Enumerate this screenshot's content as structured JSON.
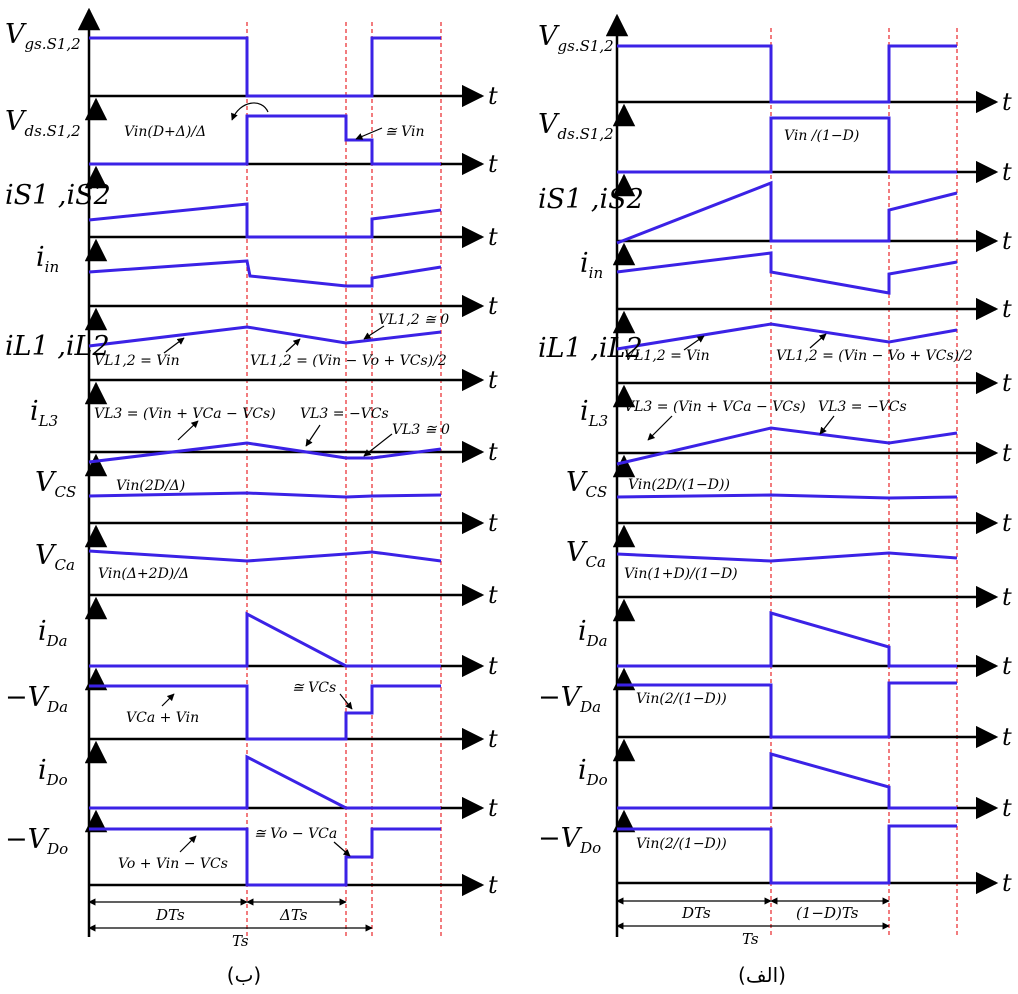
{
  "axis_tick": "t",
  "panels": {
    "b": {
      "caption": "(ب)",
      "signals": [
        {
          "id": "vgs",
          "label": "V",
          "sub": "gs.S1,2"
        },
        {
          "id": "vds",
          "label": "V",
          "sub": "ds.S1,2"
        },
        {
          "id": "is",
          "label": "iS1 ,iS2",
          "sub": ""
        },
        {
          "id": "iin",
          "label": "i",
          "sub": "in"
        },
        {
          "id": "iL",
          "label": "iL1 ,iL2",
          "sub": ""
        },
        {
          "id": "iL3",
          "label": "i",
          "sub": "L3"
        },
        {
          "id": "vcs",
          "label": "V",
          "sub": "CS"
        },
        {
          "id": "vca",
          "label": "V",
          "sub": "Ca"
        },
        {
          "id": "ida",
          "label": "i",
          "sub": "Da"
        },
        {
          "id": "vda",
          "label": "−V",
          "sub": "Da"
        },
        {
          "id": "ido",
          "label": "i",
          "sub": "Do"
        },
        {
          "id": "vdo",
          "label": "−V",
          "sub": "Do"
        }
      ],
      "annotations": {
        "vds_level": "Vin(D+Δ)/Δ",
        "vds_step": "≅ Vin",
        "vL12_on": "VL1,2 = Vin",
        "vL12_off": "VL1,2 = (Vin − Vo + VCs)/2",
        "vL12_zero": "VL1,2 ≅ 0",
        "vL3_on": "VL3 = (Vin + VCa − VCs)",
        "vL3_off": "VL3 = −VCs",
        "vL3_zero": "VL3 ≅ 0",
        "vcs": "Vin(2D/Δ)",
        "vca": "Vin(Δ+2D)/Δ",
        "vda_step": "≅ VCs",
        "vda_level": "VCa + Vin",
        "vdo_step": "≅ Vo − VCa",
        "vdo_level": "Vo + Vin − VCs"
      },
      "timing": {
        "dts": "DTs",
        "dts2": "ΔTs",
        "ts": "Ts"
      }
    },
    "a": {
      "caption": "(الف)",
      "signals": [
        {
          "id": "vgs",
          "label": "V",
          "sub": "gs.S1,2"
        },
        {
          "id": "vds",
          "label": "V",
          "sub": "ds.S1,2"
        },
        {
          "id": "is",
          "label": "iS1 ,iS2",
          "sub": ""
        },
        {
          "id": "iin",
          "label": "i",
          "sub": "in"
        },
        {
          "id": "iL",
          "label": "iL1 ,iL2",
          "sub": ""
        },
        {
          "id": "iL3",
          "label": "i",
          "sub": "L3"
        },
        {
          "id": "vcs",
          "label": "V",
          "sub": "CS"
        },
        {
          "id": "vca",
          "label": "V",
          "sub": "Ca"
        },
        {
          "id": "ida",
          "label": "i",
          "sub": "Da"
        },
        {
          "id": "vda",
          "label": "−V",
          "sub": "Da"
        },
        {
          "id": "ido",
          "label": "i",
          "sub": "Do"
        },
        {
          "id": "vdo",
          "label": "−V",
          "sub": "Do"
        }
      ],
      "annotations": {
        "vds_level": "Vin /(1−D)",
        "vL12_on": "VL1,2 = Vin",
        "vL12_off": "VL1,2 = (Vin − Vo + VCs)/2",
        "vL3_on": "VL3 = (Vin + VCa − VCs)",
        "vL3_off": "VL3 = −VCs",
        "vcs": "Vin(2D/(1−D))",
        "vca": "Vin(1+D)/(1−D)",
        "vda_level": "Vin(2/(1−D))",
        "vdo_level": "Vin(2/(1−D))"
      },
      "timing": {
        "dts": "DTs",
        "dts2": "(1−D)Ts",
        "ts": "Ts"
      }
    }
  },
  "colors": {
    "waveform": "#3b22e6",
    "guide": "#e8262a",
    "axis": "#000000"
  }
}
